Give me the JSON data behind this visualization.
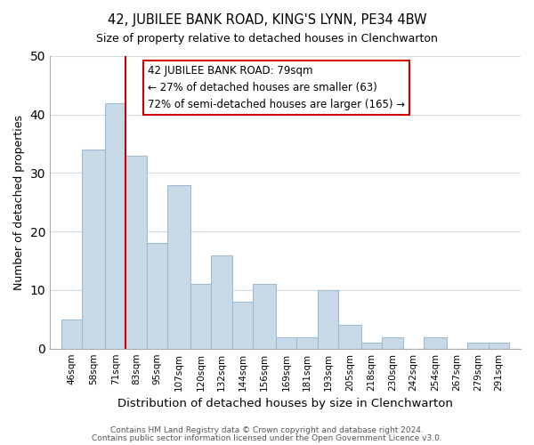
{
  "title": "42, JUBILEE BANK ROAD, KING'S LYNN, PE34 4BW",
  "subtitle": "Size of property relative to detached houses in Clenchwarton",
  "xlabel": "Distribution of detached houses by size in Clenchwarton",
  "ylabel": "Number of detached properties",
  "footnote1": "Contains HM Land Registry data © Crown copyright and database right 2024.",
  "footnote2": "Contains public sector information licensed under the Open Government Licence v3.0.",
  "bar_labels": [
    "46sqm",
    "58sqm",
    "71sqm",
    "83sqm",
    "95sqm",
    "107sqm",
    "120sqm",
    "132sqm",
    "144sqm",
    "156sqm",
    "169sqm",
    "181sqm",
    "193sqm",
    "205sqm",
    "218sqm",
    "230sqm",
    "242sqm",
    "254sqm",
    "267sqm",
    "279sqm",
    "291sqm"
  ],
  "bar_values": [
    5,
    34,
    42,
    33,
    18,
    28,
    11,
    16,
    8,
    11,
    2,
    2,
    10,
    4,
    1,
    2,
    0,
    2,
    0,
    1,
    1
  ],
  "bar_color": "#c8d9e8",
  "bar_edge_color": "#9dbbd4",
  "grid_color": "#d0dce6",
  "annotation_title": "42 JUBILEE BANK ROAD: 79sqm",
  "annotation_line1": "← 27% of detached houses are smaller (63)",
  "annotation_line2": "72% of semi-detached houses are larger (165) →",
  "annotation_box_facecolor": "#ffffff",
  "annotation_border_color": "#cc0000",
  "red_line_color": "#cc0000",
  "ylim": [
    0,
    50
  ],
  "bin_edges": [
    46,
    58,
    71,
    83,
    95,
    107,
    120,
    132,
    144,
    156,
    169,
    181,
    193,
    205,
    218,
    230,
    242,
    254,
    267,
    279,
    291,
    303
  ]
}
